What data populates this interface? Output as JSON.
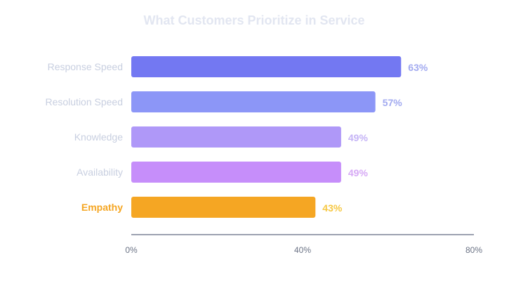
{
  "chart_data": {
    "type": "bar",
    "orientation": "horizontal",
    "title": "What Customers Prioritize in Service",
    "categories": [
      "Response Speed",
      "Resolution Speed",
      "Knowledge",
      "Availability",
      "Empathy"
    ],
    "values": [
      63,
      57,
      49,
      49,
      43
    ],
    "value_labels": [
      "63%",
      "57%",
      "49%",
      "49%",
      "43%"
    ],
    "highlight_index": 4,
    "xlim": [
      0,
      80
    ],
    "x_ticks": [
      0,
      40,
      80
    ],
    "x_tick_labels": [
      "0%",
      "40%",
      "80%"
    ],
    "xlabel": "",
    "ylabel": "",
    "grid": false,
    "colors": {
      "bars": [
        "#7378f2",
        "#8c96f7",
        "#af98f8",
        "#c68efa",
        "#f5a623"
      ],
      "value_labels": [
        "#a2aaf0",
        "#a2aaf0",
        "#c5b4f6",
        "#d6a9f5",
        "#f6c843"
      ],
      "category_label": "#c8cfe0",
      "highlight_label": "#f5a623",
      "title": "#e2e6f1",
      "axis": "#7b8396",
      "tick_label": "#6b7385"
    }
  }
}
